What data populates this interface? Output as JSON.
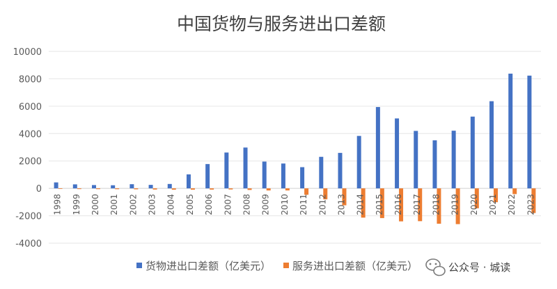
{
  "chart_data": {
    "type": "bar",
    "title": "中国货物与服务进出口差额",
    "categories": [
      "1998",
      "1999",
      "2000",
      "2001",
      "2002",
      "2003",
      "2004",
      "2005",
      "2006",
      "2007",
      "2008",
      "2009",
      "2010",
      "2011",
      "2012",
      "2013",
      "2014",
      "2015",
      "2016",
      "2017",
      "2018",
      "2019",
      "2020",
      "2021",
      "2022",
      "2023"
    ],
    "series": [
      {
        "name": "货物进出口差额（亿美元）",
        "color": "#4472C4",
        "values": [
          435,
          292,
          241,
          226,
          304,
          255,
          321,
          1020,
          1775,
          2618,
          2981,
          1957,
          1815,
          1549,
          2303,
          2590,
          3830,
          5939,
          5107,
          4196,
          3509,
          4211,
          5240,
          6364,
          8376,
          8232
        ]
      },
      {
        "name": "服务进出口差额（亿美元）",
        "color": "#ED7D31",
        "values": [
          -28,
          -53,
          -56,
          -59,
          -68,
          -85,
          -97,
          -94,
          -89,
          -79,
          -115,
          -153,
          -151,
          -468,
          -797,
          -1236,
          -2137,
          -2169,
          -2409,
          -2395,
          -2582,
          -2611,
          -1453,
          -1012,
          -418,
          -1800
        ]
      }
    ],
    "ylim": [
      -4000,
      10000
    ],
    "yticks": [
      -4000,
      -2000,
      0,
      2000,
      4000,
      6000,
      8000,
      10000
    ],
    "grid": true,
    "legend_position": "bottom",
    "watermark_text": "公众号 · 城读"
  }
}
